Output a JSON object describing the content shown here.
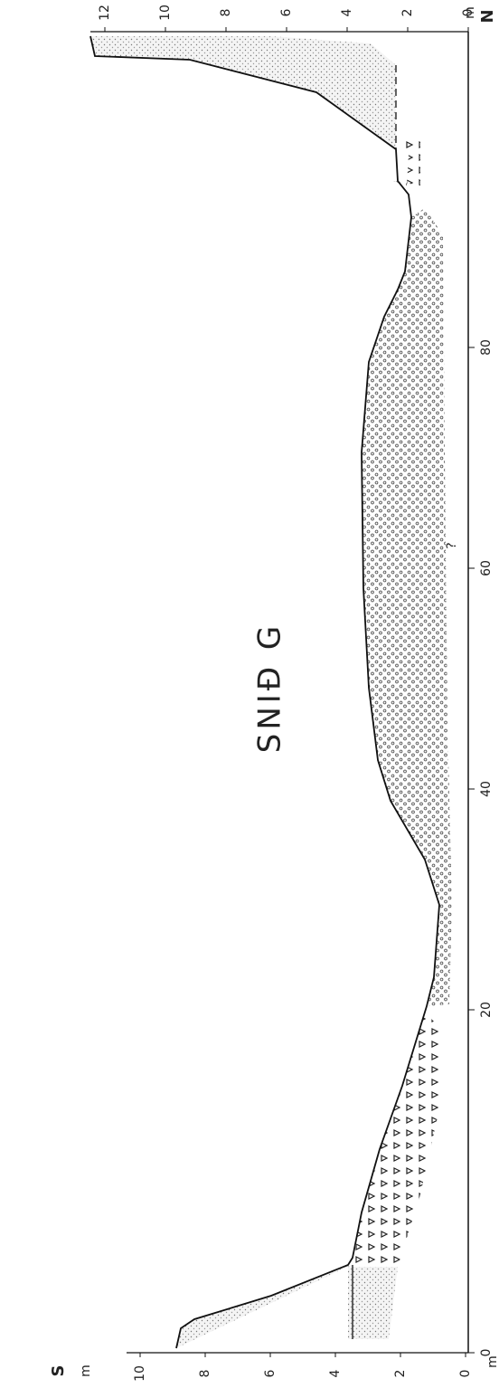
{
  "title": "SNIĐ G",
  "south": "S",
  "north": "N",
  "left_unit": "m",
  "right_unit": "m",
  "distance_unit": "m",
  "left_ticks": [
    0,
    2,
    4,
    6,
    8,
    10
  ],
  "right_ticks": [
    0,
    2,
    4,
    6,
    8,
    10,
    12
  ],
  "distance_ticks": [
    0,
    20,
    40,
    60,
    80
  ],
  "query": "?"
}
